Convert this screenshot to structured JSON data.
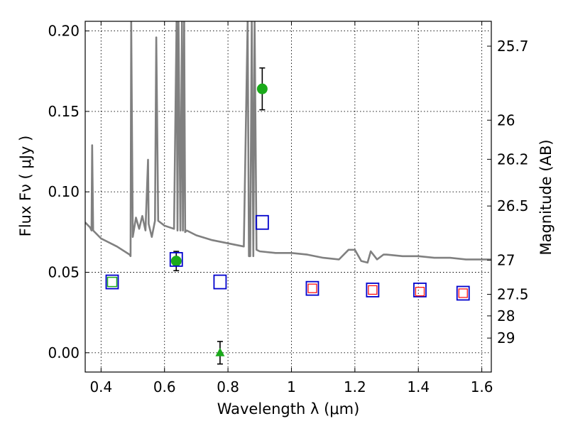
{
  "chart_data": {
    "type": "scatter",
    "title": "",
    "xlabel": "Wavelength  λ (μm)",
    "ylabel": "Flux  Fν  ( μJy )",
    "y2label": "Magnitude (AB)",
    "xlim": [
      0.35,
      1.63
    ],
    "ylim": [
      -0.012,
      0.206
    ],
    "grid": true,
    "x_ticks": [
      {
        "v": 0.4,
        "label": "0.4"
      },
      {
        "v": 0.6,
        "label": "0.6"
      },
      {
        "v": 0.8,
        "label": "0.8"
      },
      {
        "v": 1.0,
        "label": "1"
      },
      {
        "v": 1.2,
        "label": "1.2"
      },
      {
        "v": 1.4,
        "label": "1.4"
      },
      {
        "v": 1.6,
        "label": "1.6"
      }
    ],
    "y_ticks": [
      {
        "v": 0.0,
        "label": "0.00"
      },
      {
        "v": 0.05,
        "label": "0.05"
      },
      {
        "v": 0.1,
        "label": "0.10"
      },
      {
        "v": 0.15,
        "label": "0.15"
      },
      {
        "v": 0.2,
        "label": "0.20"
      }
    ],
    "y2_ticks": [
      {
        "mag": 25.7,
        "label": "25.7"
      },
      {
        "mag": 26.0,
        "label": "26"
      },
      {
        "mag": 26.2,
        "label": "26.2"
      },
      {
        "mag": 26.5,
        "label": "26.5"
      },
      {
        "mag": 27.0,
        "label": "27"
      },
      {
        "mag": 27.5,
        "label": "27.5"
      },
      {
        "mag": 28.0,
        "label": "28"
      },
      {
        "mag": 29.0,
        "label": "29"
      }
    ],
    "series": [
      {
        "kind": "model_sed",
        "color": "#808080",
        "x": [
          0.35,
          0.365,
          0.37,
          0.372,
          0.375,
          0.4,
          0.45,
          0.49,
          0.493,
          0.495,
          0.5,
          0.51,
          0.52,
          0.53,
          0.54,
          0.548,
          0.55,
          0.56,
          0.57,
          0.574,
          0.58,
          0.6,
          0.63,
          0.638,
          0.641,
          0.644,
          0.65,
          0.655,
          0.658,
          0.662,
          0.665,
          0.67,
          0.7,
          0.75,
          0.8,
          0.85,
          0.862,
          0.866,
          0.87,
          0.875,
          0.88,
          0.884,
          0.89,
          0.9,
          0.95,
          1.0,
          1.05,
          1.1,
          1.15,
          1.18,
          1.2,
          1.22,
          1.24,
          1.25,
          1.27,
          1.29,
          1.3,
          1.35,
          1.4,
          1.45,
          1.5,
          1.55,
          1.6,
          1.63
        ],
        "y": [
          0.081,
          0.078,
          0.076,
          0.129,
          0.076,
          0.071,
          0.066,
          0.061,
          0.06,
          0.206,
          0.072,
          0.084,
          0.077,
          0.085,
          0.076,
          0.12,
          0.08,
          0.072,
          0.082,
          0.196,
          0.082,
          0.079,
          0.077,
          0.206,
          0.076,
          0.206,
          0.076,
          0.206,
          0.076,
          0.206,
          0.075,
          0.076,
          0.073,
          0.07,
          0.068,
          0.066,
          0.206,
          0.06,
          0.06,
          0.206,
          0.06,
          0.206,
          0.064,
          0.063,
          0.062,
          0.062,
          0.061,
          0.059,
          0.058,
          0.064,
          0.064,
          0.057,
          0.056,
          0.063,
          0.058,
          0.061,
          0.061,
          0.06,
          0.06,
          0.059,
          0.059,
          0.058,
          0.058,
          0.058
        ]
      },
      {
        "kind": "observed_points",
        "color": "#1aaa1a",
        "points": [
          {
            "x": 0.637,
            "y": 0.057,
            "err": 0.006,
            "marker": "circle"
          },
          {
            "x": 0.908,
            "y": 0.164,
            "err": 0.013,
            "marker": "circle"
          },
          {
            "x": 0.775,
            "y": 0.0,
            "err": 0.007,
            "marker": "triangle"
          },
          {
            "x": 0.435,
            "y": 0.044,
            "err": 0,
            "marker": "square"
          }
        ]
      },
      {
        "kind": "model_photometry",
        "color": "#0000cc",
        "x": [
          0.435,
          0.637,
          0.775,
          0.908,
          1.066,
          1.256,
          1.405,
          1.541
        ],
        "y": [
          0.044,
          0.058,
          0.044,
          0.081,
          0.04,
          0.039,
          0.039,
          0.037
        ]
      },
      {
        "kind": "upper_limit_squares",
        "color": "#ff0000",
        "x": [
          1.066,
          1.256,
          1.405,
          1.541
        ],
        "y": [
          0.04,
          0.039,
          0.038,
          0.037
        ]
      }
    ]
  }
}
